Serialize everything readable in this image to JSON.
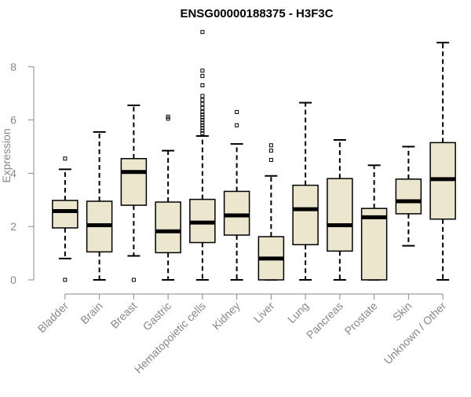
{
  "chart_data": {
    "type": "boxplot",
    "title": "ENSG00000188375 - H3F3C",
    "xlabel": "",
    "ylabel": "Expression",
    "ylim": [
      0,
      9.4
    ],
    "yticks": [
      0,
      2,
      4,
      6,
      8
    ],
    "grid": false,
    "legend": "none",
    "box_color": "#ede6cf",
    "categories": [
      "Bladder",
      "Brain",
      "Breast",
      "Gastric",
      "Hematopoietic cells",
      "Kidney",
      "Liver",
      "Lung",
      "Pancreas",
      "Prostate",
      "Skin",
      "Unknown / Other"
    ],
    "boxes": [
      {
        "whisker_low": 0.8,
        "q1": 1.95,
        "median": 2.58,
        "q3": 2.98,
        "whisker_high": 4.15,
        "outliers": [
          0.0,
          4.55
        ]
      },
      {
        "whisker_low": 0.0,
        "q1": 1.05,
        "median": 2.05,
        "q3": 2.95,
        "whisker_high": 5.55,
        "outliers": []
      },
      {
        "whisker_low": 0.9,
        "q1": 2.8,
        "median": 4.05,
        "q3": 4.55,
        "whisker_high": 6.55,
        "outliers": [
          0.0
        ]
      },
      {
        "whisker_low": 0.0,
        "q1": 1.02,
        "median": 1.82,
        "q3": 2.92,
        "whisker_high": 4.85,
        "outliers": [
          6.05,
          6.12
        ]
      },
      {
        "whisker_low": 0.0,
        "q1": 1.4,
        "median": 2.15,
        "q3": 3.02,
        "whisker_high": 5.4,
        "outliers": [
          5.5,
          5.6,
          5.7,
          5.8,
          5.9,
          6.0,
          6.1,
          6.2,
          6.3,
          6.45,
          6.6,
          6.75,
          6.9,
          7.3,
          7.65,
          7.85,
          9.3
        ]
      },
      {
        "whisker_low": 0.0,
        "q1": 1.68,
        "median": 2.42,
        "q3": 3.32,
        "whisker_high": 5.1,
        "outliers": [
          5.8,
          6.3
        ]
      },
      {
        "whisker_low": 0.0,
        "q1": 0.0,
        "median": 0.8,
        "q3": 1.62,
        "whisker_high": 3.9,
        "outliers": [
          4.5,
          4.85,
          5.05
        ]
      },
      {
        "whisker_low": 0.0,
        "q1": 1.32,
        "median": 2.65,
        "q3": 3.55,
        "whisker_high": 6.65,
        "outliers": []
      },
      {
        "whisker_low": 0.0,
        "q1": 1.08,
        "median": 2.05,
        "q3": 3.8,
        "whisker_high": 5.25,
        "outliers": []
      },
      {
        "whisker_low": 0.0,
        "q1": 0.0,
        "median": 2.35,
        "q3": 2.68,
        "whisker_high": 4.3,
        "outliers": []
      },
      {
        "whisker_low": 1.28,
        "q1": 2.48,
        "median": 2.95,
        "q3": 3.78,
        "whisker_high": 5.0,
        "outliers": []
      },
      {
        "whisker_low": 0.0,
        "q1": 2.28,
        "median": 3.78,
        "q3": 5.15,
        "whisker_high": 8.9,
        "outliers": []
      }
    ]
  }
}
